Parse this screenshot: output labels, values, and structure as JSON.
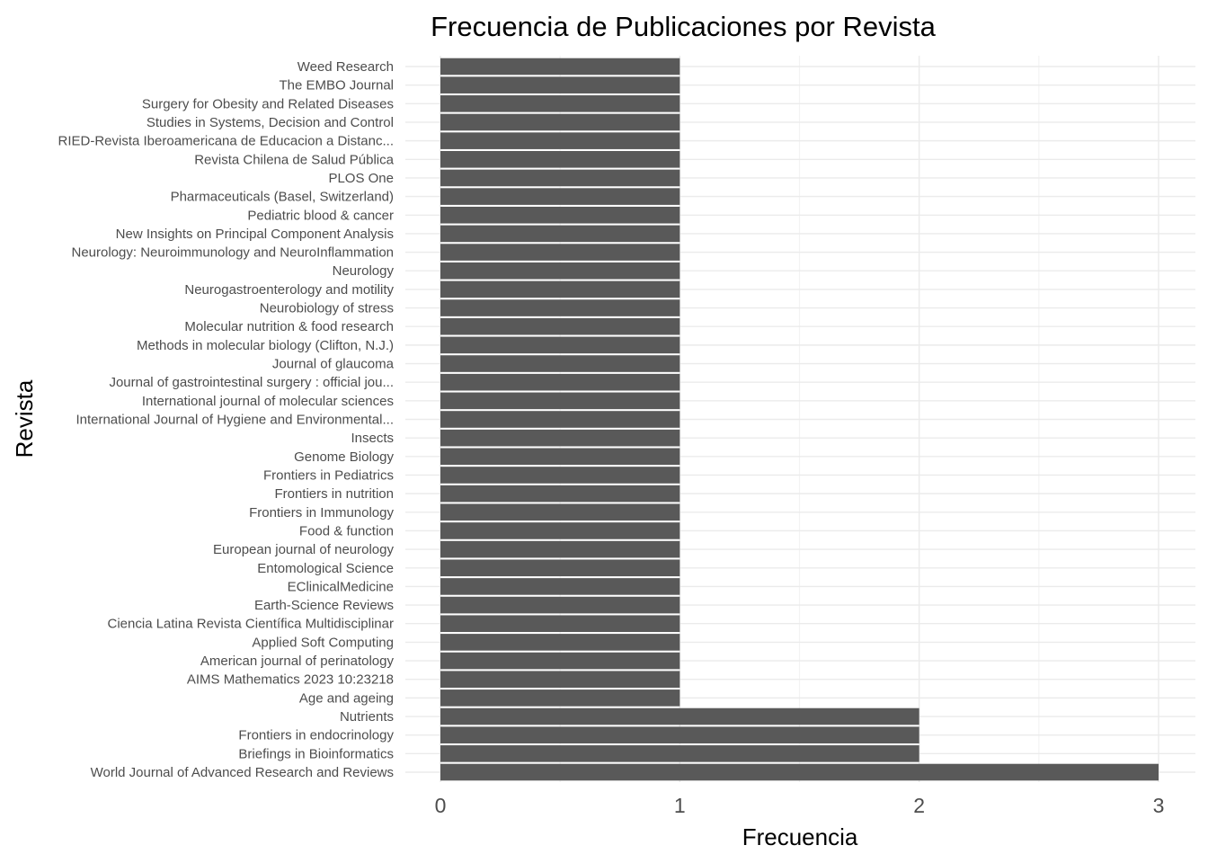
{
  "chart_data": {
    "type": "bar",
    "orientation": "horizontal",
    "title": "Frecuencia de Publicaciones por Revista",
    "xlabel": "Frecuencia",
    "ylabel": "Revista",
    "xlim": [
      0,
      3
    ],
    "x_ticks": [
      "0",
      "1",
      "2",
      "3"
    ],
    "grid": true,
    "bar_color": "#595959",
    "categories": [
      "Weed Research",
      "The EMBO Journal",
      "Surgery for Obesity and Related Diseases",
      "Studies in Systems, Decision and Control",
      "RIED-Revista Iberoamericana de Educacion a Distanc...",
      "Revista Chilena de Salud Pública",
      "PLOS One",
      "Pharmaceuticals (Basel, Switzerland)",
      "Pediatric blood & cancer",
      "New Insights on Principal Component Analysis",
      "Neurology: Neuroimmunology and NeuroInflammation",
      "Neurology",
      "Neurogastroenterology and motility",
      "Neurobiology of stress",
      "Molecular nutrition & food research",
      "Methods in molecular biology (Clifton, N.J.)",
      "Journal of glaucoma",
      "Journal of gastrointestinal surgery : official jou...",
      "International journal of molecular sciences",
      "International Journal of Hygiene and Environmental...",
      "Insects",
      "Genome Biology",
      "Frontiers in Pediatrics",
      "Frontiers in nutrition",
      "Frontiers in Immunology",
      "Food & function",
      "European journal of neurology",
      "Entomological Science",
      "EClinicalMedicine",
      "Earth-Science Reviews",
      "Ciencia Latina Revista Científica Multidisciplinar",
      "Applied Soft Computing",
      "American journal of perinatology",
      "AIMS Mathematics 2023 10:23218",
      "Age and ageing",
      "Nutrients",
      "Frontiers in endocrinology",
      "Briefings in Bioinformatics",
      "World Journal of Advanced Research and Reviews"
    ],
    "values": [
      1,
      1,
      1,
      1,
      1,
      1,
      1,
      1,
      1,
      1,
      1,
      1,
      1,
      1,
      1,
      1,
      1,
      1,
      1,
      1,
      1,
      1,
      1,
      1,
      1,
      1,
      1,
      1,
      1,
      1,
      1,
      1,
      1,
      1,
      1,
      2,
      2,
      2,
      3
    ]
  }
}
